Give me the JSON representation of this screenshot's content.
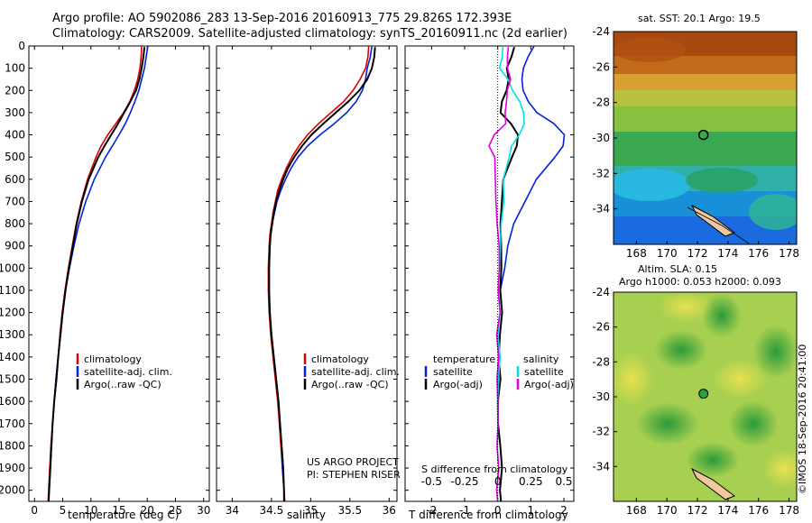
{
  "header": {
    "line1": "Argo profile: AO 5902086_283 13-Sep-2016 20160913_775 29.826S 172.393E",
    "line2": "Climatology: CARS2009. Satellite-adjusted climatology: synTS_20160911.nc (2d earlier)"
  },
  "colors": {
    "climatology": "#e00000",
    "satellite": "#0020e0",
    "argo": "#000000",
    "sal_satellite": "#00e0e0",
    "sal_argo": "#e000e0"
  },
  "credits": {
    "project": "US ARGO PROJECT",
    "pi": "PI: STEPHEN RISER",
    "imos": "©IMOS 18-Sep-2016 20:41:00"
  },
  "chart_data": [
    {
      "type": "line",
      "name": "temperature-profile",
      "xlabel": "temperature (deg C)",
      "ylim": [
        2050,
        0
      ],
      "xlim": [
        -1,
        31
      ],
      "xticks": [
        0,
        5,
        10,
        15,
        20,
        25,
        30
      ],
      "yticks": [
        0,
        100,
        200,
        300,
        400,
        500,
        600,
        700,
        800,
        900,
        1000,
        1100,
        1200,
        1300,
        1400,
        1500,
        1600,
        1700,
        1800,
        1900,
        2000
      ],
      "legend": [
        "climatology",
        "satellite-adj. clim.",
        "Argo(..raw -QC)"
      ],
      "series": [
        {
          "name": "climatology",
          "color": "#e00000",
          "depth": [
            0,
            50,
            100,
            150,
            200,
            250,
            300,
            350,
            400,
            450,
            500,
            600,
            700,
            800,
            900,
            1000,
            1100,
            1200,
            1300,
            1400,
            1500,
            1600,
            1700,
            1800,
            1900,
            2000,
            2050
          ],
          "values": [
            19.0,
            18.9,
            18.7,
            18.3,
            17.7,
            16.9,
            15.8,
            14.4,
            13.0,
            11.8,
            10.9,
            9.4,
            8.3,
            7.4,
            6.7,
            6.0,
            5.4,
            4.9,
            4.5,
            4.2,
            3.8,
            3.5,
            3.2,
            2.9,
            2.7,
            2.5,
            2.4
          ]
        },
        {
          "name": "satellite-adj. clim.",
          "color": "#0020e0",
          "depth": [
            0,
            50,
            100,
            150,
            200,
            250,
            300,
            350,
            400,
            450,
            500,
            600,
            700,
            800,
            900,
            1000,
            1100,
            1200,
            1300,
            1400,
            1500,
            1600,
            1700,
            1800,
            1900,
            2000,
            2050
          ],
          "values": [
            20.1,
            19.8,
            19.5,
            19.0,
            18.5,
            17.8,
            17.0,
            16.1,
            15.0,
            13.8,
            12.6,
            10.6,
            9.1,
            7.9,
            7.0,
            6.2,
            5.5,
            5.0,
            4.6,
            4.2,
            3.8,
            3.5,
            3.2,
            3.0,
            2.8,
            2.6,
            2.5
          ]
        },
        {
          "name": "Argo(..raw -QC)",
          "color": "#000000",
          "depth": [
            5,
            50,
            100,
            150,
            200,
            250,
            300,
            350,
            400,
            450,
            500,
            600,
            700,
            800,
            900,
            1000,
            1100,
            1200,
            1300,
            1400,
            1500,
            1600,
            1700,
            1800,
            1900,
            2000,
            2050
          ],
          "values": [
            19.5,
            19.3,
            19.0,
            18.6,
            18.0,
            17.0,
            15.9,
            14.8,
            13.6,
            12.4,
            11.3,
            9.6,
            8.4,
            7.5,
            6.8,
            6.1,
            5.5,
            5.0,
            4.6,
            4.2,
            3.9,
            3.5,
            3.2,
            3.0,
            2.8,
            2.6,
            2.5
          ]
        }
      ]
    },
    {
      "type": "line",
      "name": "salinity-profile",
      "xlabel": "salinity",
      "ylim": [
        2050,
        0
      ],
      "xlim": [
        33.8,
        36.1
      ],
      "xticks": [
        34,
        34.5,
        35,
        35.5,
        36
      ],
      "xticklabels": [
        "34",
        "34.5",
        "35",
        "35.5",
        "36"
      ],
      "legend": [
        "climatology",
        "satellite-adj. clim.",
        "Argo(..raw -QC)"
      ],
      "series": [
        {
          "name": "climatology",
          "color": "#e00000",
          "depth": [
            0,
            50,
            100,
            150,
            200,
            250,
            300,
            350,
            400,
            450,
            500,
            550,
            600,
            650,
            700,
            750,
            800,
            850,
            900,
            1000,
            1100,
            1200,
            1300,
            1400,
            1500,
            1600,
            1700,
            1800,
            1900,
            2000,
            2050
          ],
          "values": [
            35.74,
            35.73,
            35.7,
            35.63,
            35.54,
            35.42,
            35.26,
            35.1,
            34.96,
            34.85,
            34.76,
            34.69,
            34.63,
            34.58,
            34.55,
            34.52,
            34.5,
            34.48,
            34.47,
            34.46,
            34.46,
            34.47,
            34.49,
            34.52,
            34.55,
            34.58,
            34.6,
            34.62,
            34.64,
            34.66,
            34.67
          ]
        },
        {
          "name": "satellite-adj. clim.",
          "color": "#0020e0",
          "depth": [
            0,
            50,
            100,
            150,
            200,
            250,
            300,
            350,
            400,
            450,
            500,
            550,
            600,
            650,
            700,
            750,
            800,
            850,
            900,
            1000,
            1100,
            1200,
            1300,
            1400,
            1500,
            1600,
            1700,
            1800,
            1900,
            2000,
            2050
          ],
          "values": [
            35.78,
            35.76,
            35.72,
            35.7,
            35.66,
            35.58,
            35.46,
            35.3,
            35.12,
            34.96,
            34.84,
            34.75,
            34.68,
            34.62,
            34.57,
            34.54,
            34.51,
            34.49,
            34.48,
            34.47,
            34.47,
            34.48,
            34.5,
            34.53,
            34.56,
            34.59,
            34.61,
            34.63,
            34.64,
            34.66,
            34.66
          ]
        },
        {
          "name": "Argo(..raw -QC)",
          "color": "#000000",
          "depth": [
            5,
            50,
            100,
            150,
            200,
            250,
            300,
            350,
            400,
            450,
            500,
            550,
            600,
            650,
            700,
            750,
            800,
            850,
            900,
            1000,
            1100,
            1200,
            1300,
            1400,
            1500,
            1600,
            1700,
            1800,
            1900,
            2000,
            2050
          ],
          "values": [
            35.82,
            35.81,
            35.78,
            35.72,
            35.62,
            35.48,
            35.32,
            35.16,
            35.01,
            34.89,
            34.79,
            34.71,
            34.65,
            34.6,
            34.56,
            34.53,
            34.51,
            34.49,
            34.48,
            34.47,
            34.47,
            34.48,
            34.5,
            34.53,
            34.56,
            34.59,
            34.61,
            34.63,
            34.65,
            34.66,
            34.66
          ]
        }
      ]
    },
    {
      "type": "line",
      "name": "difference-profile",
      "xlabel": "T difference from climatology",
      "xlabel_top": "S difference from climatology",
      "ylim": [
        2050,
        0
      ],
      "xlim": [
        -2.8,
        2.3
      ],
      "xticks": [
        -2,
        -1,
        0,
        1,
        2
      ],
      "xticks_top": [
        -0.5,
        -0.25,
        0,
        0.25,
        0.5
      ],
      "legend_headers": [
        "temperature",
        "salinity"
      ],
      "legend": [
        "satellite",
        "Argo(-adj)",
        "satellite",
        "Argo(-adj)"
      ],
      "series": [
        {
          "name": "satellite",
          "group": "temperature",
          "color": "#0020e0",
          "depth": [
            0,
            50,
            100,
            150,
            200,
            250,
            300,
            350,
            400,
            450,
            500,
            600,
            700,
            800,
            900,
            1000,
            1100,
            1200,
            1300,
            1400,
            1500,
            1600,
            1700,
            1800,
            1900,
            2000,
            2050
          ],
          "values": [
            1.1,
            0.9,
            0.8,
            0.7,
            0.8,
            0.9,
            1.2,
            1.7,
            2.0,
            2.0,
            1.7,
            1.2,
            0.8,
            0.5,
            0.3,
            0.2,
            0.1,
            0.1,
            0.1,
            0.0,
            0.0,
            0.0,
            0.0,
            0.1,
            0.1,
            0.1,
            0.1
          ]
        },
        {
          "name": "Argo(-adj)",
          "group": "temperature",
          "color": "#000000",
          "depth": [
            5,
            50,
            100,
            150,
            200,
            250,
            300,
            350,
            400,
            450,
            500,
            600,
            700,
            800,
            900,
            1000,
            1100,
            1200,
            1300,
            1400,
            1500,
            1600,
            1700,
            1800,
            1900,
            2000,
            2050
          ],
          "values": [
            0.5,
            0.4,
            0.3,
            0.3,
            0.3,
            0.1,
            0.1,
            0.4,
            0.6,
            0.6,
            0.4,
            0.2,
            0.1,
            0.1,
            0.1,
            0.1,
            0.1,
            0.1,
            0.1,
            0.0,
            0.1,
            0.0,
            0.0,
            0.1,
            0.1,
            0.1,
            0.1
          ]
        },
        {
          "name": "satellite",
          "group": "salinity",
          "color": "#00e0e0",
          "depth": [
            0,
            50,
            100,
            150,
            200,
            250,
            300,
            350,
            400,
            450,
            500,
            600,
            700,
            800,
            900,
            1000,
            1100,
            1200,
            1300,
            1400,
            1500,
            1600,
            1700,
            1800,
            1900,
            2000,
            2050
          ],
          "values": [
            0.04,
            0.03,
            0.02,
            0.07,
            0.12,
            0.16,
            0.2,
            0.2,
            0.16,
            0.11,
            0.08,
            0.05,
            0.04,
            0.03,
            0.02,
            0.01,
            0.01,
            0.01,
            0.01,
            0.01,
            0.01,
            0.0,
            0.0,
            0.0,
            0.0,
            0.0,
            0.0
          ]
        },
        {
          "name": "Argo(-adj)",
          "group": "salinity",
          "color": "#e000e0",
          "depth": [
            5,
            50,
            100,
            150,
            200,
            250,
            300,
            350,
            400,
            450,
            500,
            600,
            700,
            800,
            900,
            1000,
            1100,
            1200,
            1300,
            1400,
            1500,
            1600,
            1700,
            1800,
            1900,
            2000,
            2050
          ],
          "values": [
            0.08,
            0.07,
            0.08,
            0.09,
            0.08,
            0.06,
            0.06,
            0.06,
            -0.03,
            -0.06,
            -0.03,
            -0.01,
            -0.02,
            0.0,
            0.01,
            0.01,
            0.01,
            0.01,
            0.0,
            0.0,
            0.0,
            0.0,
            0.0,
            0.0,
            0.0,
            0.0,
            0.0
          ]
        }
      ]
    },
    {
      "type": "heatmap",
      "name": "sst-map",
      "title": "sat. SST: 20.1  Argo: 19.5",
      "xlim": [
        166.5,
        178.5
      ],
      "ylim": [
        -36,
        -24
      ],
      "xticks": [
        168,
        170,
        172,
        174,
        176,
        178
      ],
      "yticks": [
        -24,
        -26,
        -28,
        -30,
        -32,
        -34
      ],
      "marker": {
        "lon": 172.393,
        "lat": -29.826
      }
    },
    {
      "type": "heatmap",
      "name": "sla-map",
      "title": "Altim. SLA: 0.15",
      "subtitle": "Argo h1000: 0.053  h2000: 0.093",
      "xlim": [
        166.5,
        178.5
      ],
      "ylim": [
        -36,
        -24
      ],
      "xticks": [
        168,
        170,
        172,
        174,
        176,
        178
      ],
      "yticks": [
        -24,
        -26,
        -28,
        -30,
        -32,
        -34
      ],
      "marker": {
        "lon": 172.393,
        "lat": -29.826
      }
    }
  ]
}
